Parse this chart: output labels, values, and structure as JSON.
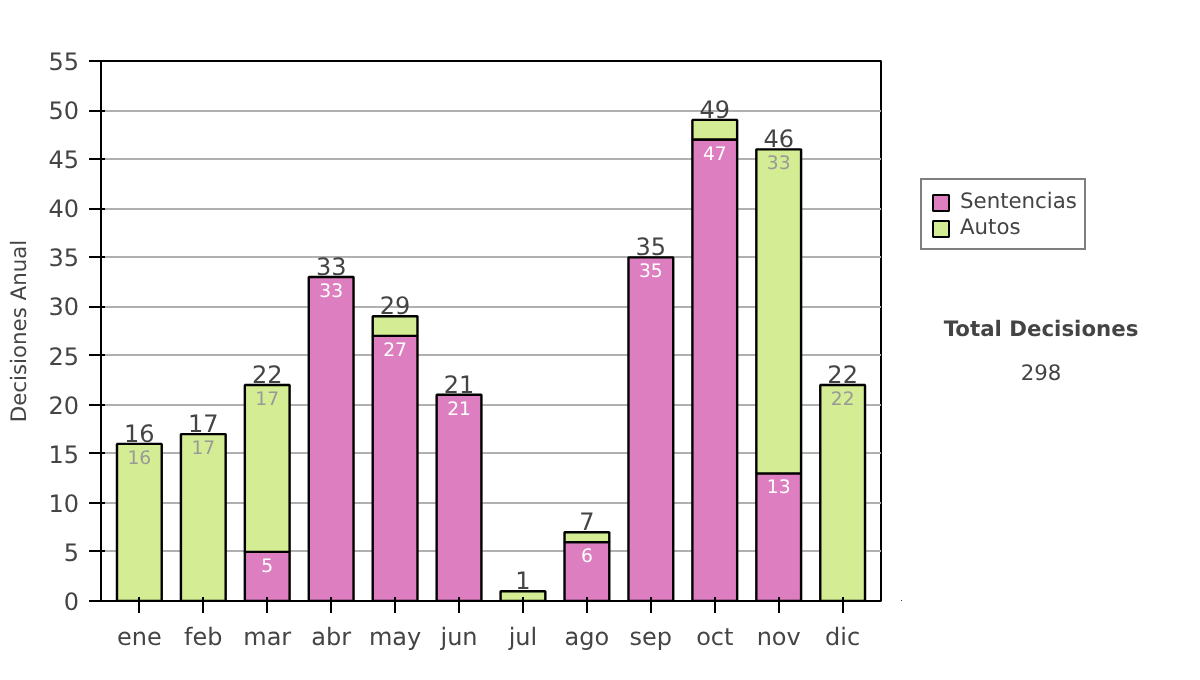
{
  "chart_data": {
    "type": "bar",
    "stacked": true,
    "ylabel": "Decisiones Anual",
    "categories": [
      "ene",
      "feb",
      "mar",
      "abr",
      "may",
      "jun",
      "jul",
      "ago",
      "sep",
      "oct",
      "nov",
      "dic"
    ],
    "series": [
      {
        "name": "Sentencias",
        "color": "#dd7ec0",
        "values": [
          null,
          null,
          5,
          33,
          27,
          21,
          null,
          6,
          35,
          47,
          13,
          null
        ],
        "value_labels": [
          null,
          null,
          "5",
          "33",
          "27",
          "21",
          null,
          "6",
          "35",
          "47",
          "13",
          null
        ]
      },
      {
        "name": "Autos",
        "color": "#d4ec94",
        "values": [
          16,
          17,
          17,
          null,
          2,
          null,
          1,
          1,
          null,
          2,
          33,
          22
        ],
        "value_labels": [
          "16",
          "17",
          "17",
          null,
          null,
          null,
          null,
          null,
          null,
          null,
          "33",
          "22"
        ]
      }
    ],
    "totals": [
      "16",
      "17",
      "22",
      "33",
      "29",
      "21",
      "1",
      "7",
      "35",
      "49",
      "46",
      "22"
    ],
    "ylim": [
      0,
      55
    ],
    "yticks": [
      0,
      5,
      10,
      15,
      20,
      25,
      30,
      35,
      40,
      45,
      50,
      55
    ],
    "grid": "y",
    "legend": "right",
    "annotations": [
      "Total Decisiones",
      "298"
    ]
  }
}
